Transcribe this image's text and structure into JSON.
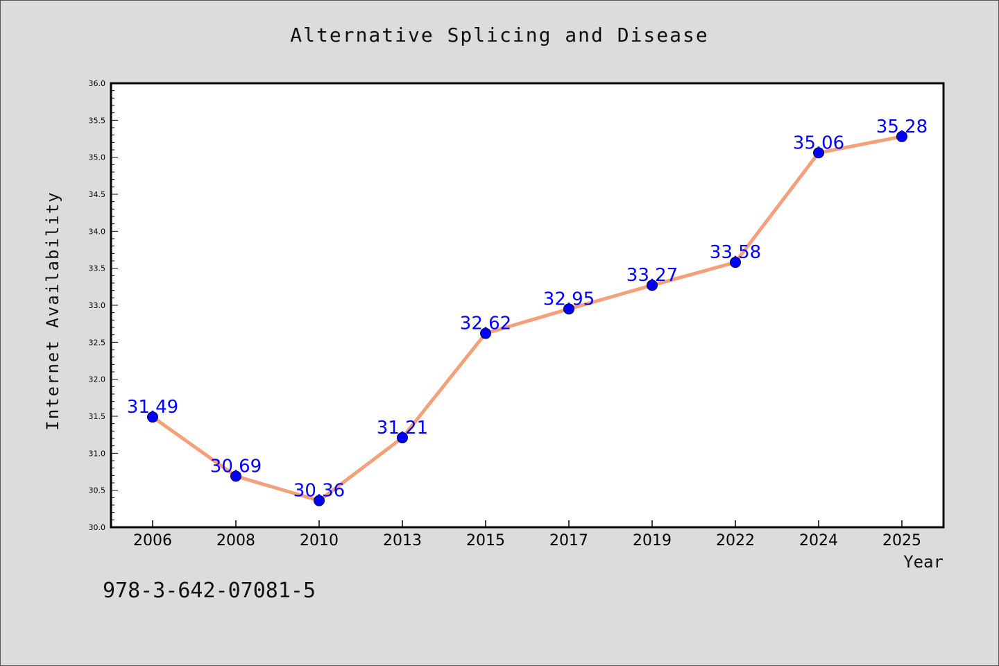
{
  "chart_data": {
    "type": "line",
    "title": "Alternative Splicing and Disease",
    "xlabel": "Year",
    "ylabel": "Internet Availability",
    "categories": [
      "2006",
      "2008",
      "2010",
      "2013",
      "2015",
      "2017",
      "2019",
      "2022",
      "2024",
      "2025"
    ],
    "values": [
      31.49,
      30.69,
      30.36,
      31.21,
      32.62,
      32.95,
      33.27,
      33.58,
      35.06,
      35.28
    ],
    "data_labels": [
      "31.49",
      "30.69",
      "30.36",
      "31.21",
      "32.62",
      "32.95",
      "33.27",
      "33.58",
      "35.06",
      "35.28"
    ],
    "ylim": [
      30.0,
      36.0
    ],
    "yticks": [
      "30.0",
      "30.5",
      "31.0",
      "31.5",
      "32.0",
      "32.5",
      "33.0",
      "33.5",
      "34.0",
      "34.5",
      "35.0",
      "35.5",
      "36.0"
    ],
    "grid": false,
    "colors": {
      "line": "#f4a07a",
      "marker": "#0000ff",
      "label": "#0000ff",
      "background": "#dcdcdc",
      "plot_background": "#ffffff"
    }
  },
  "footer": {
    "isbn": "978-3-642-07081-5"
  }
}
